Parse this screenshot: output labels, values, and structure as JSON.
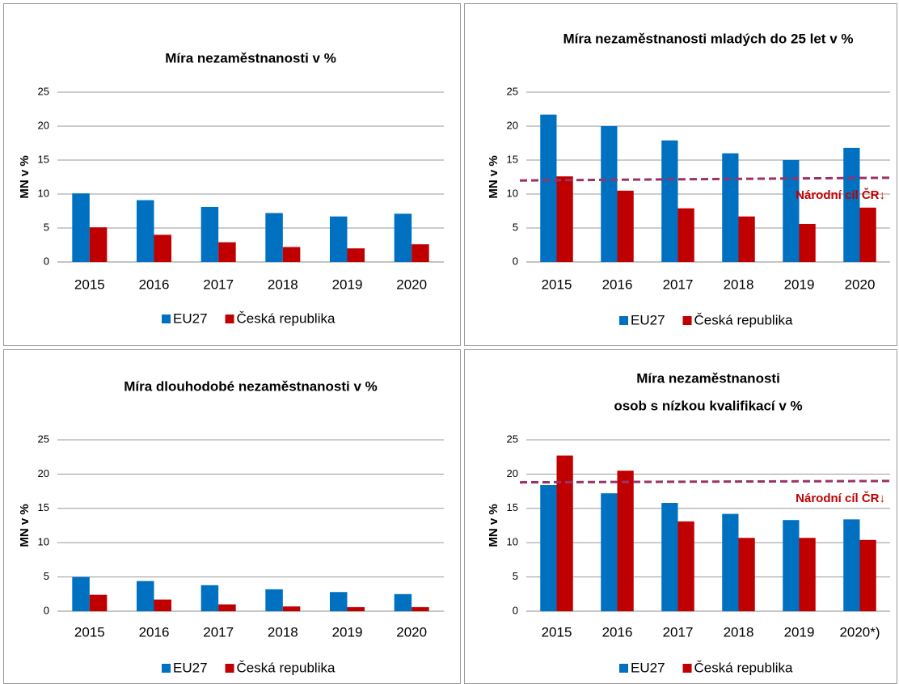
{
  "chart_data": [
    {
      "type": "bar",
      "title": "Míra nezaměstnanosti v %",
      "y_label": "MN v %",
      "categories": [
        "2015",
        "2016",
        "2017",
        "2018",
        "2019",
        "2020"
      ],
      "series": [
        {
          "name": "EU27",
          "color": "#0070c0",
          "values": [
            10.1,
            9.1,
            8.1,
            7.2,
            6.7,
            7.1
          ]
        },
        {
          "name": "Česká republika",
          "color": "#c00000",
          "values": [
            5.1,
            4.0,
            2.9,
            2.2,
            2.0,
            2.6
          ]
        }
      ],
      "ylim": [
        0,
        25
      ],
      "yticks": [
        0,
        5,
        10,
        15,
        20,
        25
      ],
      "grid": true
    },
    {
      "type": "bar",
      "title": "Míra nezaměstnanosti mladých do 25 let v %",
      "y_label": "MN v %",
      "categories": [
        "2015",
        "2016",
        "2017",
        "2018",
        "2019",
        "2020"
      ],
      "series": [
        {
          "name": "EU27",
          "color": "#0070c0",
          "values": [
            21.7,
            20.0,
            17.9,
            16.0,
            15.0,
            16.8
          ]
        },
        {
          "name": "Česká republika",
          "color": "#c00000",
          "values": [
            12.6,
            10.5,
            7.9,
            6.7,
            5.6,
            8.0
          ]
        }
      ],
      "target": {
        "label": "Národní cíl ČR↓",
        "color": "#993366",
        "values": [
          12.0,
          12.4
        ]
      },
      "ylim": [
        0,
        25
      ],
      "yticks": [
        0,
        5,
        10,
        15,
        20,
        25
      ],
      "grid": true
    },
    {
      "type": "bar",
      "title": "Míra dlouhodobé nezaměstnanosti v %",
      "y_label": "MN v %",
      "categories": [
        "2015",
        "2016",
        "2017",
        "2018",
        "2019",
        "2020"
      ],
      "series": [
        {
          "name": "EU27",
          "color": "#0070c0",
          "values": [
            5.0,
            4.4,
            3.8,
            3.2,
            2.8,
            2.5
          ]
        },
        {
          "name": "Česká republika",
          "color": "#c00000",
          "values": [
            2.4,
            1.7,
            1.0,
            0.7,
            0.6,
            0.6
          ]
        }
      ],
      "ylim": [
        0,
        25
      ],
      "yticks": [
        0,
        5,
        10,
        15,
        20,
        25
      ],
      "grid": true
    },
    {
      "type": "bar",
      "title": [
        "Míra nezaměstnanosti",
        "osob s nízkou kvalifikací v %"
      ],
      "y_label": "MN v %",
      "categories": [
        "2015",
        "2016",
        "2017",
        "2018",
        "2019",
        "2020*)"
      ],
      "series": [
        {
          "name": "EU27",
          "color": "#0070c0",
          "values": [
            18.4,
            17.2,
            15.8,
            14.2,
            13.3,
            13.4
          ]
        },
        {
          "name": "Česká republika",
          "color": "#c00000",
          "values": [
            22.7,
            20.5,
            13.1,
            10.7,
            10.7,
            10.4
          ]
        }
      ],
      "target": {
        "label": "Národní cíl ČR↓",
        "color": "#993366",
        "values": [
          18.8,
          19.0
        ]
      },
      "ylim": [
        0,
        25
      ],
      "yticks": [
        0,
        5,
        10,
        15,
        20,
        25
      ],
      "grid": true
    }
  ]
}
